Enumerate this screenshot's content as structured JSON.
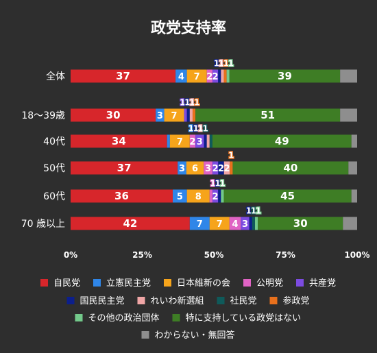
{
  "chart_data": {
    "type": "bar",
    "orientation": "horizontal",
    "stacked": true,
    "title": "政党支持率",
    "categories": [
      "全体",
      "18〜39歳",
      "40代",
      "50代",
      "60代",
      "70 歳以上"
    ],
    "xlim": [
      0,
      100
    ],
    "x_ticks": [
      "0%",
      "25%",
      "50%",
      "75%",
      "100%"
    ],
    "legend_position": "bottom",
    "series": [
      {
        "name": "自民党",
        "color": "#d7262b",
        "values": [
          37,
          30,
          34,
          37,
          36,
          42
        ]
      },
      {
        "name": "立憲民主党",
        "color": "#2f86e8",
        "values": [
          4,
          3,
          1,
          3,
          5,
          7
        ]
      },
      {
        "name": "日本維新の会",
        "color": "#f6a41b",
        "values": [
          7,
          7,
          7,
          6,
          8,
          7
        ]
      },
      {
        "name": "公明党",
        "color": "#e063c4",
        "values": [
          2,
          0,
          2,
          3,
          1,
          4
        ]
      },
      {
        "name": "共産党",
        "color": "#7c4be0",
        "values": [
          2,
          1,
          3,
          2,
          2,
          3
        ]
      },
      {
        "name": "国民民主党",
        "color": "#0c1f8c",
        "values": [
          1,
          1,
          1,
          2,
          1,
          1
        ]
      },
      {
        "name": "れいわ新選組",
        "color": "#f0a6a6",
        "values": [
          1,
          1,
          1,
          2,
          0,
          0
        ]
      },
      {
        "name": "社民党",
        "color": "#0f5a5a",
        "values": [
          0,
          0,
          1,
          0,
          0,
          1
        ]
      },
      {
        "name": "参政党",
        "color": "#e8701c",
        "values": [
          1,
          1,
          0,
          1,
          0,
          0
        ]
      },
      {
        "name": "その他の政治団体",
        "color": "#73c98b",
        "values": [
          1,
          0,
          0,
          0,
          1,
          1
        ]
      },
      {
        "name": "特に支持している政党はない",
        "color": "#3e7d25",
        "values": [
          39,
          51,
          49,
          40,
          45,
          30
        ]
      },
      {
        "name": "わからない・無回答",
        "color": "#8e8e8e",
        "values": [
          6,
          6,
          2,
          3,
          2,
          5
        ]
      }
    ]
  }
}
